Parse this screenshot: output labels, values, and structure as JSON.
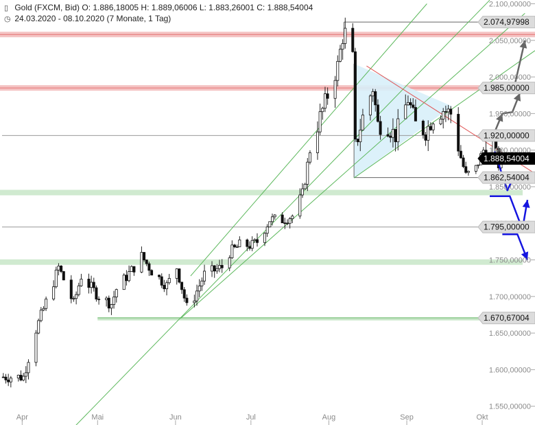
{
  "header": {
    "candle_icon": "candlestick-icon",
    "clock_icon": "clock-icon",
    "line1": "Gold (FXCM, Bid)  O: 1.886,18005  H: 1.889,06006  L: 1.883,26001  C: 1.888,54004",
    "line2": "24.03.2020 - 08.10.2020  (7 Monate, 1 Tag)"
  },
  "chart_data": {
    "type": "candlestick",
    "y_axis": {
      "range": [
        1530,
        2100
      ],
      "ticks": [
        {
          "value": 1550,
          "label": "1.550,00000"
        },
        {
          "value": 1600,
          "label": "1.600,00000"
        },
        {
          "value": 1650,
          "label": "1.650,00000"
        },
        {
          "value": 1700,
          "label": "1.700,00000"
        },
        {
          "value": 1750,
          "label": "1.750,00000"
        },
        {
          "value": 1800,
          "label": "1.800,00000"
        },
        {
          "value": 1850,
          "label": "1.850,00000"
        },
        {
          "value": 1900,
          "label": "1.900,00000"
        },
        {
          "value": 1950,
          "label": "1.950,00000"
        },
        {
          "value": 2000,
          "label": "2.000,00000"
        },
        {
          "value": 2050,
          "label": "2.050,00000"
        },
        {
          "value": 2100,
          "label": "2.100,00000"
        }
      ]
    },
    "x_axis": {
      "range": [
        "2020-03-24",
        "2020-10-22"
      ],
      "ticks": [
        {
          "date": "2020-04-01",
          "label": "Apr"
        },
        {
          "date": "2020-05-01",
          "label": "Mai"
        },
        {
          "date": "2020-06-01",
          "label": "Jun"
        },
        {
          "date": "2020-07-01",
          "label": "Jul"
        },
        {
          "date": "2020-08-01",
          "label": "Aug"
        },
        {
          "date": "2020-09-01",
          "label": "Sep"
        },
        {
          "date": "2020-10-01",
          "label": "Okt"
        }
      ]
    },
    "price_labels": [
      {
        "value": 2074.97998,
        "label": "2.074,97998",
        "style": "plain"
      },
      {
        "value": 1985,
        "label": "1.985,00000",
        "style": "plain"
      },
      {
        "value": 1920,
        "label": "1.920,00000",
        "style": "plain"
      },
      {
        "value": 1888.54004,
        "label": "1.888,54004",
        "style": "current"
      },
      {
        "value": 1862.54004,
        "label": "1.862,54004",
        "style": "plain"
      },
      {
        "value": 1795,
        "label": "1.795,00000",
        "style": "plain"
      },
      {
        "value": 1670.67004,
        "label": "1.670,67004",
        "style": "plain"
      }
    ],
    "horizontal_zones": [
      {
        "value": 2058,
        "color": "#f2b8b8",
        "kind": "resistance"
      },
      {
        "value": 1985,
        "color": "#f2b8b8",
        "kind": "resistance"
      },
      {
        "value": 1842,
        "color": "#c8e6c8",
        "kind": "support"
      },
      {
        "value": 1747,
        "color": "#c8e6c8",
        "kind": "support"
      }
    ],
    "horizontal_lines": [
      {
        "value": 2074.97998,
        "from": "2020-08-07",
        "color": "#666666"
      },
      {
        "value": 1920,
        "from": "2020-03-24",
        "color": "#999999"
      },
      {
        "value": 1862.54004,
        "from": "2020-08-11",
        "color": "#666666"
      },
      {
        "value": 1795,
        "from": "2020-03-24",
        "color": "#999999"
      },
      {
        "value": 1670.67004,
        "from": "2020-05-01",
        "color": "#8cc98c",
        "thick": true
      }
    ],
    "trend_lines": [
      {
        "from": [
          "2020-04-17",
          1505
        ],
        "to": [
          "2020-10-04",
          2105
        ],
        "color": "#5cb85c"
      },
      {
        "from": [
          "2020-06-03",
          1670
        ],
        "to": [
          "2020-10-18",
          2087
        ],
        "color": "#5cb85c"
      },
      {
        "from": [
          "2020-06-07",
          1728
        ],
        "to": [
          "2020-09-09",
          2100
        ],
        "color": "#5cb85c"
      },
      {
        "from": [
          "2020-08-11",
          1862
        ],
        "to": [
          "2020-10-22",
          2036
        ],
        "color": "#5cb85c"
      },
      {
        "from": [
          "2020-08-16",
          2015
        ],
        "to": [
          "2020-10-22",
          1868
        ],
        "color": "#e05555"
      }
    ],
    "triangle": {
      "points": [
        [
          "2020-08-11",
          2018
        ],
        [
          "2020-08-11",
          1862
        ],
        [
          "2020-09-19",
          1960
        ]
      ],
      "fill": "#d8effa"
    },
    "scenario_arrows": [
      {
        "color": "#666666",
        "points": [
          [
            "2020-10-08",
            1988
          ],
          [
            "2020-10-14",
            1990
          ],
          [
            "2020-10-18",
            2050
          ]
        ]
      },
      {
        "color": "#666666",
        "points": [
          [
            "2020-10-09",
            1950
          ],
          [
            "2020-10-13",
            1952
          ],
          [
            "2020-10-16",
            1978
          ]
        ]
      },
      {
        "color": "#666666",
        "points": [
          [
            "2020-10-03",
            1922
          ],
          [
            "2020-10-06",
            1925
          ],
          [
            "2020-10-09",
            1950
          ]
        ]
      },
      {
        "color": "#1515e0",
        "points": [
          [
            "2020-10-04",
            1890
          ],
          [
            "2020-10-06",
            1897
          ],
          [
            "2020-10-11",
            1845
          ],
          [
            "2020-10-14",
            1867
          ]
        ]
      },
      {
        "color": "#1515e0",
        "points": [
          [
            "2020-10-04",
            1837
          ],
          [
            "2020-10-12",
            1837
          ],
          [
            "2020-10-17",
            1792
          ],
          [
            "2020-10-19",
            1832
          ]
        ]
      },
      {
        "color": "#1515e0",
        "points": [
          [
            "2020-10-09",
            1785
          ],
          [
            "2020-10-15",
            1785
          ],
          [
            "2020-10-19",
            1750
          ]
        ]
      }
    ],
    "waypoints": [
      [
        "2020-03-24",
        1590
      ],
      [
        "2020-04-01",
        1590
      ],
      [
        "2020-04-06",
        1655
      ],
      [
        "2020-04-13",
        1720
      ],
      [
        "2020-04-15",
        1740
      ],
      [
        "2020-04-21",
        1690
      ],
      [
        "2020-04-24",
        1728
      ],
      [
        "2020-05-01",
        1700
      ],
      [
        "2020-05-06",
        1690
      ],
      [
        "2020-05-08",
        1710
      ],
      [
        "2020-05-15",
        1740
      ],
      [
        "2020-05-18",
        1755
      ],
      [
        "2020-05-22",
        1735
      ],
      [
        "2020-05-28",
        1715
      ],
      [
        "2020-06-01",
        1740
      ],
      [
        "2020-06-05",
        1685
      ],
      [
        "2020-06-08",
        1700
      ],
      [
        "2020-06-12",
        1730
      ],
      [
        "2020-06-19",
        1740
      ],
      [
        "2020-06-22",
        1760
      ],
      [
        "2020-06-26",
        1770
      ],
      [
        "2020-07-01",
        1770
      ],
      [
        "2020-07-03",
        1775
      ],
      [
        "2020-07-08",
        1805
      ],
      [
        "2020-07-13",
        1805
      ],
      [
        "2020-07-17",
        1810
      ],
      [
        "2020-07-21",
        1840
      ],
      [
        "2020-07-24",
        1900
      ],
      [
        "2020-07-28",
        1945
      ],
      [
        "2020-07-31",
        1975
      ],
      [
        "2020-08-04",
        2015
      ],
      [
        "2020-08-06",
        2055
      ],
      [
        "2020-08-07",
        2060
      ],
      [
        "2020-08-10",
        2025
      ],
      [
        "2020-08-11",
        1905
      ],
      [
        "2020-08-12",
        1918
      ],
      [
        "2020-08-14",
        1945
      ],
      [
        "2020-08-18",
        1985
      ],
      [
        "2020-08-20",
        1935
      ],
      [
        "2020-08-24",
        1932
      ],
      [
        "2020-08-27",
        1920
      ],
      [
        "2020-09-01",
        1970
      ],
      [
        "2020-09-04",
        1935
      ],
      [
        "2020-09-08",
        1925
      ],
      [
        "2020-09-11",
        1945
      ],
      [
        "2020-09-15",
        1955
      ],
      [
        "2020-09-18",
        1950
      ],
      [
        "2020-09-22",
        1890
      ],
      [
        "2020-09-24",
        1865
      ],
      [
        "2020-09-28",
        1875
      ],
      [
        "2020-10-01",
        1900
      ],
      [
        "2020-10-05",
        1910
      ],
      [
        "2020-10-07",
        1880
      ],
      [
        "2020-10-08",
        1888.54
      ]
    ]
  }
}
